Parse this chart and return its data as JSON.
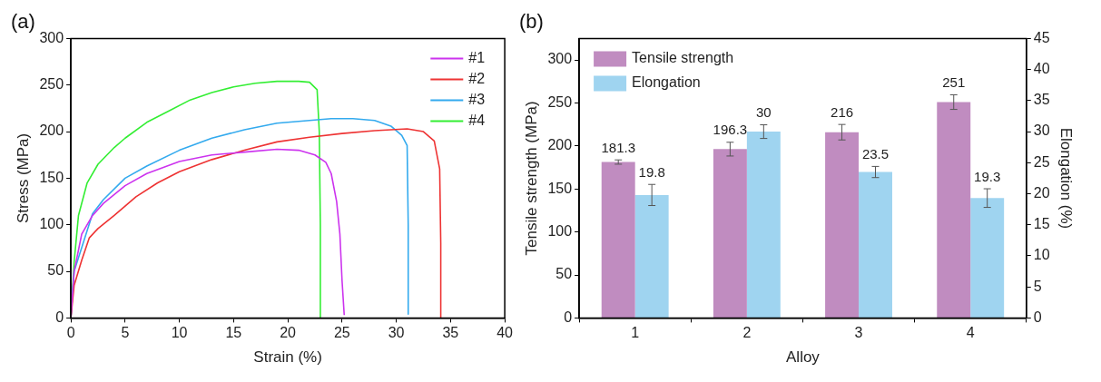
{
  "chart_data": [
    {
      "type": "line",
      "title": "(a)",
      "xlabel": "Strain (%)",
      "ylabel": "Stress (MPa)",
      "xlim": [
        0,
        40
      ],
      "xticks": [
        0,
        5,
        10,
        15,
        20,
        25,
        30,
        35,
        40
      ],
      "ylim": [
        0,
        300
      ],
      "yticks": [
        0,
        50,
        100,
        150,
        200,
        250,
        300
      ],
      "legend": "top right",
      "series": [
        {
          "name": "#1",
          "color": "#cc33ee",
          "x": [
            0,
            0.3,
            1,
            2,
            3,
            5,
            7,
            10,
            13,
            16,
            19,
            21,
            22.5,
            23.5,
            24,
            24.5,
            24.8,
            25,
            25.2
          ],
          "values": [
            0,
            50,
            90,
            110,
            123,
            142,
            155,
            168,
            175,
            178,
            181,
            180,
            175,
            167,
            155,
            125,
            90,
            40,
            3
          ]
        },
        {
          "name": "#2",
          "color": "#ee3333",
          "x": [
            0,
            0.3,
            1,
            1.7,
            2.5,
            4,
            6,
            8,
            10,
            13,
            16,
            19,
            22,
            25,
            28,
            31,
            32.5,
            33.5,
            34,
            34.1,
            34.1
          ],
          "values": [
            0,
            35,
            62,
            86,
            96,
            110,
            130,
            145,
            157,
            170,
            180,
            189,
            194,
            198,
            201,
            203,
            200,
            190,
            160,
            80,
            0
          ]
        },
        {
          "name": "#3",
          "color": "#33aaee",
          "x": [
            0,
            0.3,
            2,
            3,
            5,
            7,
            10,
            13,
            16,
            19,
            22,
            24,
            26,
            28,
            29.5,
            30.5,
            31,
            31.1,
            31.1
          ],
          "values": [
            0,
            50,
            112,
            127,
            150,
            163,
            180,
            193,
            202,
            209,
            212,
            214,
            214,
            212,
            206,
            196,
            185,
            100,
            4
          ]
        },
        {
          "name": "#4",
          "color": "#33ee33",
          "x": [
            0,
            0.3,
            0.7,
            1.5,
            2.5,
            4,
            5,
            7,
            9,
            11,
            13,
            15,
            17,
            19,
            21,
            22,
            22.7,
            22.9,
            23,
            23
          ],
          "values": [
            0,
            60,
            110,
            145,
            165,
            183,
            193,
            210,
            222,
            234,
            242,
            248,
            252,
            254,
            254,
            253,
            245,
            200,
            100,
            0
          ]
        }
      ]
    },
    {
      "type": "bar",
      "title": "(b)",
      "xlabel": "Alloy",
      "ylabel": "Tensile strength (MPa)",
      "y2label": "Elongation (%)",
      "categories": [
        "1",
        "2",
        "3",
        "4"
      ],
      "ylim": [
        0,
        325
      ],
      "yticks": [
        0,
        50,
        100,
        150,
        200,
        250,
        300
      ],
      "y2lim": [
        0,
        45
      ],
      "y2ticks": [
        0,
        5,
        10,
        15,
        20,
        25,
        30,
        35,
        40,
        45
      ],
      "legend": "top left",
      "data_labels": true,
      "series": [
        {
          "name": "Tensile strength",
          "color": "#c08cc0",
          "values": [
            181.3,
            196.3,
            216,
            251
          ],
          "errors": [
            2.5,
            8,
            9,
            8.5
          ]
        },
        {
          "name": "Elongation",
          "color": "#9fd4f0",
          "axis": "y2",
          "values": [
            19.8,
            30,
            23.5,
            19.3
          ],
          "errors": [
            1.7,
            1.1,
            0.9,
            1.5
          ]
        }
      ]
    }
  ]
}
